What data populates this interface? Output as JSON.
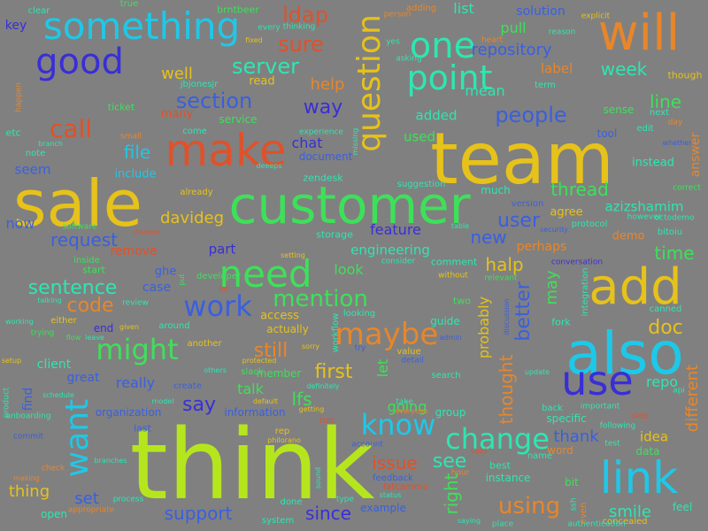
{
  "colors": {
    "background": "#808080",
    "lime": "#b5e61d",
    "gold": "#e6c21a",
    "green": "#3ee05a",
    "cyan": "#1ec8e8",
    "teal": "#2ee6b0",
    "blue": "#3a5fe0",
    "indigo": "#3a2ed6",
    "orange": "#e8862a",
    "red": "#e0512a"
  },
  "words": [
    {
      "text": "think"
    },
    {
      "text": "team"
    },
    {
      "text": "sale"
    },
    {
      "text": "customer"
    },
    {
      "text": "also"
    },
    {
      "text": "make"
    },
    {
      "text": "will"
    },
    {
      "text": "something"
    },
    {
      "text": "good"
    },
    {
      "text": "add"
    },
    {
      "text": "use"
    },
    {
      "text": "link"
    },
    {
      "text": "need"
    },
    {
      "text": "one"
    },
    {
      "text": "point"
    },
    {
      "text": "want"
    },
    {
      "text": "know"
    },
    {
      "text": "change"
    },
    {
      "text": "maybe"
    },
    {
      "text": "work"
    },
    {
      "text": "might"
    },
    {
      "text": "question"
    },
    {
      "text": "call"
    },
    {
      "text": "mention"
    },
    {
      "text": "ldap"
    },
    {
      "text": "server"
    },
    {
      "text": "section"
    },
    {
      "text": "people"
    },
    {
      "text": "sure"
    },
    {
      "text": "repository"
    },
    {
      "text": "request"
    },
    {
      "text": "sentence"
    },
    {
      "text": "code"
    },
    {
      "text": "first"
    },
    {
      "text": "still"
    },
    {
      "text": "say"
    },
    {
      "text": "doc"
    },
    {
      "text": "better"
    },
    {
      "text": "way"
    },
    {
      "text": "help"
    },
    {
      "text": "week"
    },
    {
      "text": "line"
    },
    {
      "text": "time"
    },
    {
      "text": "thread"
    },
    {
      "text": "user"
    },
    {
      "text": "new"
    },
    {
      "text": "halp"
    },
    {
      "text": "feature"
    },
    {
      "text": "file"
    },
    {
      "text": "well"
    },
    {
      "text": "davideg"
    },
    {
      "text": "azizshamim"
    },
    {
      "text": "thought"
    },
    {
      "text": "probably"
    },
    {
      "text": "may"
    },
    {
      "text": "repo"
    },
    {
      "text": "different"
    },
    {
      "text": "right"
    },
    {
      "text": "see"
    },
    {
      "text": "issue"
    },
    {
      "text": "using"
    },
    {
      "text": "smile"
    },
    {
      "text": "since"
    },
    {
      "text": "support"
    },
    {
      "text": "set"
    },
    {
      "text": "thing"
    },
    {
      "text": "talk"
    },
    {
      "text": "lfs"
    },
    {
      "text": "really"
    },
    {
      "text": "great"
    },
    {
      "text": "client"
    },
    {
      "text": "going"
    },
    {
      "text": "let"
    },
    {
      "text": "thank"
    },
    {
      "text": "idea"
    },
    {
      "text": "mean"
    },
    {
      "text": "list"
    },
    {
      "text": "pull"
    },
    {
      "text": "label"
    },
    {
      "text": "solution"
    },
    {
      "text": "key"
    },
    {
      "text": "seem"
    },
    {
      "text": "now"
    },
    {
      "text": "part"
    },
    {
      "text": "look"
    },
    {
      "text": "added"
    },
    {
      "text": "used"
    },
    {
      "text": "chat"
    },
    {
      "text": "document"
    },
    {
      "text": "include"
    },
    {
      "text": "remove"
    },
    {
      "text": "engineering"
    },
    {
      "text": "zendesk"
    },
    {
      "text": "storage"
    },
    {
      "text": "access"
    },
    {
      "text": "actually"
    },
    {
      "text": "end"
    },
    {
      "text": "case"
    },
    {
      "text": "ghe"
    },
    {
      "text": "many"
    },
    {
      "text": "read"
    },
    {
      "text": "instead"
    },
    {
      "text": "demo"
    },
    {
      "text": "agree"
    },
    {
      "text": "sense"
    },
    {
      "text": "tool"
    },
    {
      "text": "perhaps"
    },
    {
      "text": "comment"
    },
    {
      "text": "much"
    },
    {
      "text": "version"
    },
    {
      "text": "organization"
    },
    {
      "text": "information"
    },
    {
      "text": "member"
    },
    {
      "text": "group"
    },
    {
      "text": "instance"
    },
    {
      "text": "feel"
    },
    {
      "text": "data"
    },
    {
      "text": "word"
    },
    {
      "text": "bit"
    },
    {
      "text": "specific"
    },
    {
      "text": "find"
    },
    {
      "text": "last"
    },
    {
      "text": "rep"
    },
    {
      "text": "run"
    },
    {
      "text": "done"
    },
    {
      "text": "best"
    },
    {
      "text": "name"
    },
    {
      "text": "canned"
    },
    {
      "text": "bitoiu"
    },
    {
      "text": "answer"
    },
    {
      "text": "service"
    },
    {
      "text": "jbjonesjr"
    },
    {
      "text": "ticket"
    },
    {
      "text": "brntbeer"
    },
    {
      "text": "true"
    },
    {
      "text": "clear"
    },
    {
      "text": "adding"
    },
    {
      "text": "heart"
    },
    {
      "text": "term"
    },
    {
      "text": "next"
    },
    {
      "text": "edit"
    },
    {
      "text": "though"
    },
    {
      "text": "etc"
    },
    {
      "text": "note"
    },
    {
      "text": "small"
    },
    {
      "text": "come"
    },
    {
      "text": "already"
    },
    {
      "text": "developer"
    },
    {
      "text": "review"
    },
    {
      "text": "software"
    },
    {
      "text": "inside"
    },
    {
      "text": "start"
    },
    {
      "text": "either"
    },
    {
      "text": "trying"
    },
    {
      "text": "around"
    },
    {
      "text": "slack"
    },
    {
      "text": "another"
    },
    {
      "text": "create"
    },
    {
      "text": "model"
    },
    {
      "text": "default"
    },
    {
      "text": "getting"
    },
    {
      "text": "value"
    },
    {
      "text": "detail"
    },
    {
      "text": "search"
    },
    {
      "text": "everyone"
    },
    {
      "text": "take"
    },
    {
      "text": "guide"
    },
    {
      "text": "two"
    },
    {
      "text": "admin"
    },
    {
      "text": "fork"
    },
    {
      "text": "important"
    },
    {
      "text": "back"
    },
    {
      "text": "update"
    },
    {
      "text": "api"
    },
    {
      "text": "step"
    },
    {
      "text": "test"
    },
    {
      "text": "concealed"
    },
    {
      "text": "place"
    },
    {
      "text": "authentication"
    },
    {
      "text": "saying"
    },
    {
      "text": "example"
    },
    {
      "text": "status"
    },
    {
      "text": "feedback"
    },
    {
      "text": "fatcamma"
    },
    {
      "text": "process"
    },
    {
      "text": "system"
    },
    {
      "text": "open"
    },
    {
      "text": "commit"
    },
    {
      "text": "onboarding"
    },
    {
      "text": "schedule"
    },
    {
      "text": "product"
    },
    {
      "text": "setup"
    },
    {
      "text": "protocol"
    },
    {
      "text": "however"
    },
    {
      "text": "octodemo"
    },
    {
      "text": "correct"
    },
    {
      "text": "conversation"
    },
    {
      "text": "without"
    },
    {
      "text": "relevant"
    },
    {
      "text": "consider"
    },
    {
      "text": "suggestion"
    },
    {
      "text": "experience"
    },
    {
      "text": "looking"
    },
    {
      "text": "workflow"
    },
    {
      "text": "sorry"
    },
    {
      "text": "try"
    },
    {
      "text": "lot"
    },
    {
      "text": "put"
    },
    {
      "text": "protected"
    },
    {
      "text": "others"
    },
    {
      "text": "definitely"
    },
    {
      "text": "philorano"
    },
    {
      "text": "account"
    },
    {
      "text": "type"
    },
    {
      "text": "sound"
    },
    {
      "text": "branches"
    },
    {
      "text": "making"
    },
    {
      "text": "check"
    },
    {
      "text": "appropriate"
    },
    {
      "text": "yes"
    },
    {
      "text": "person"
    },
    {
      "text": "reason"
    },
    {
      "text": "explicit"
    },
    {
      "text": "asking"
    },
    {
      "text": "thinking"
    },
    {
      "text": "every"
    },
    {
      "text": "fixed"
    },
    {
      "text": "branch"
    },
    {
      "text": "happen"
    },
    {
      "text": "integration"
    },
    {
      "text": "discussion"
    },
    {
      "text": "whether"
    },
    {
      "text": "day"
    },
    {
      "text": "table"
    },
    {
      "text": "security"
    },
    {
      "text": "flow"
    },
    {
      "text": "given"
    },
    {
      "text": "working"
    },
    {
      "text": "talking"
    },
    {
      "text": "changed"
    },
    {
      "text": "deeeps"
    },
    {
      "text": "setting"
    },
    {
      "text": "leave"
    },
    {
      "text": "missing"
    },
    {
      "text": "said"
    },
    {
      "text": "hour"
    },
    {
      "text": "ssh"
    },
    {
      "text": "even"
    },
    {
      "text": "following"
    }
  ]
}
